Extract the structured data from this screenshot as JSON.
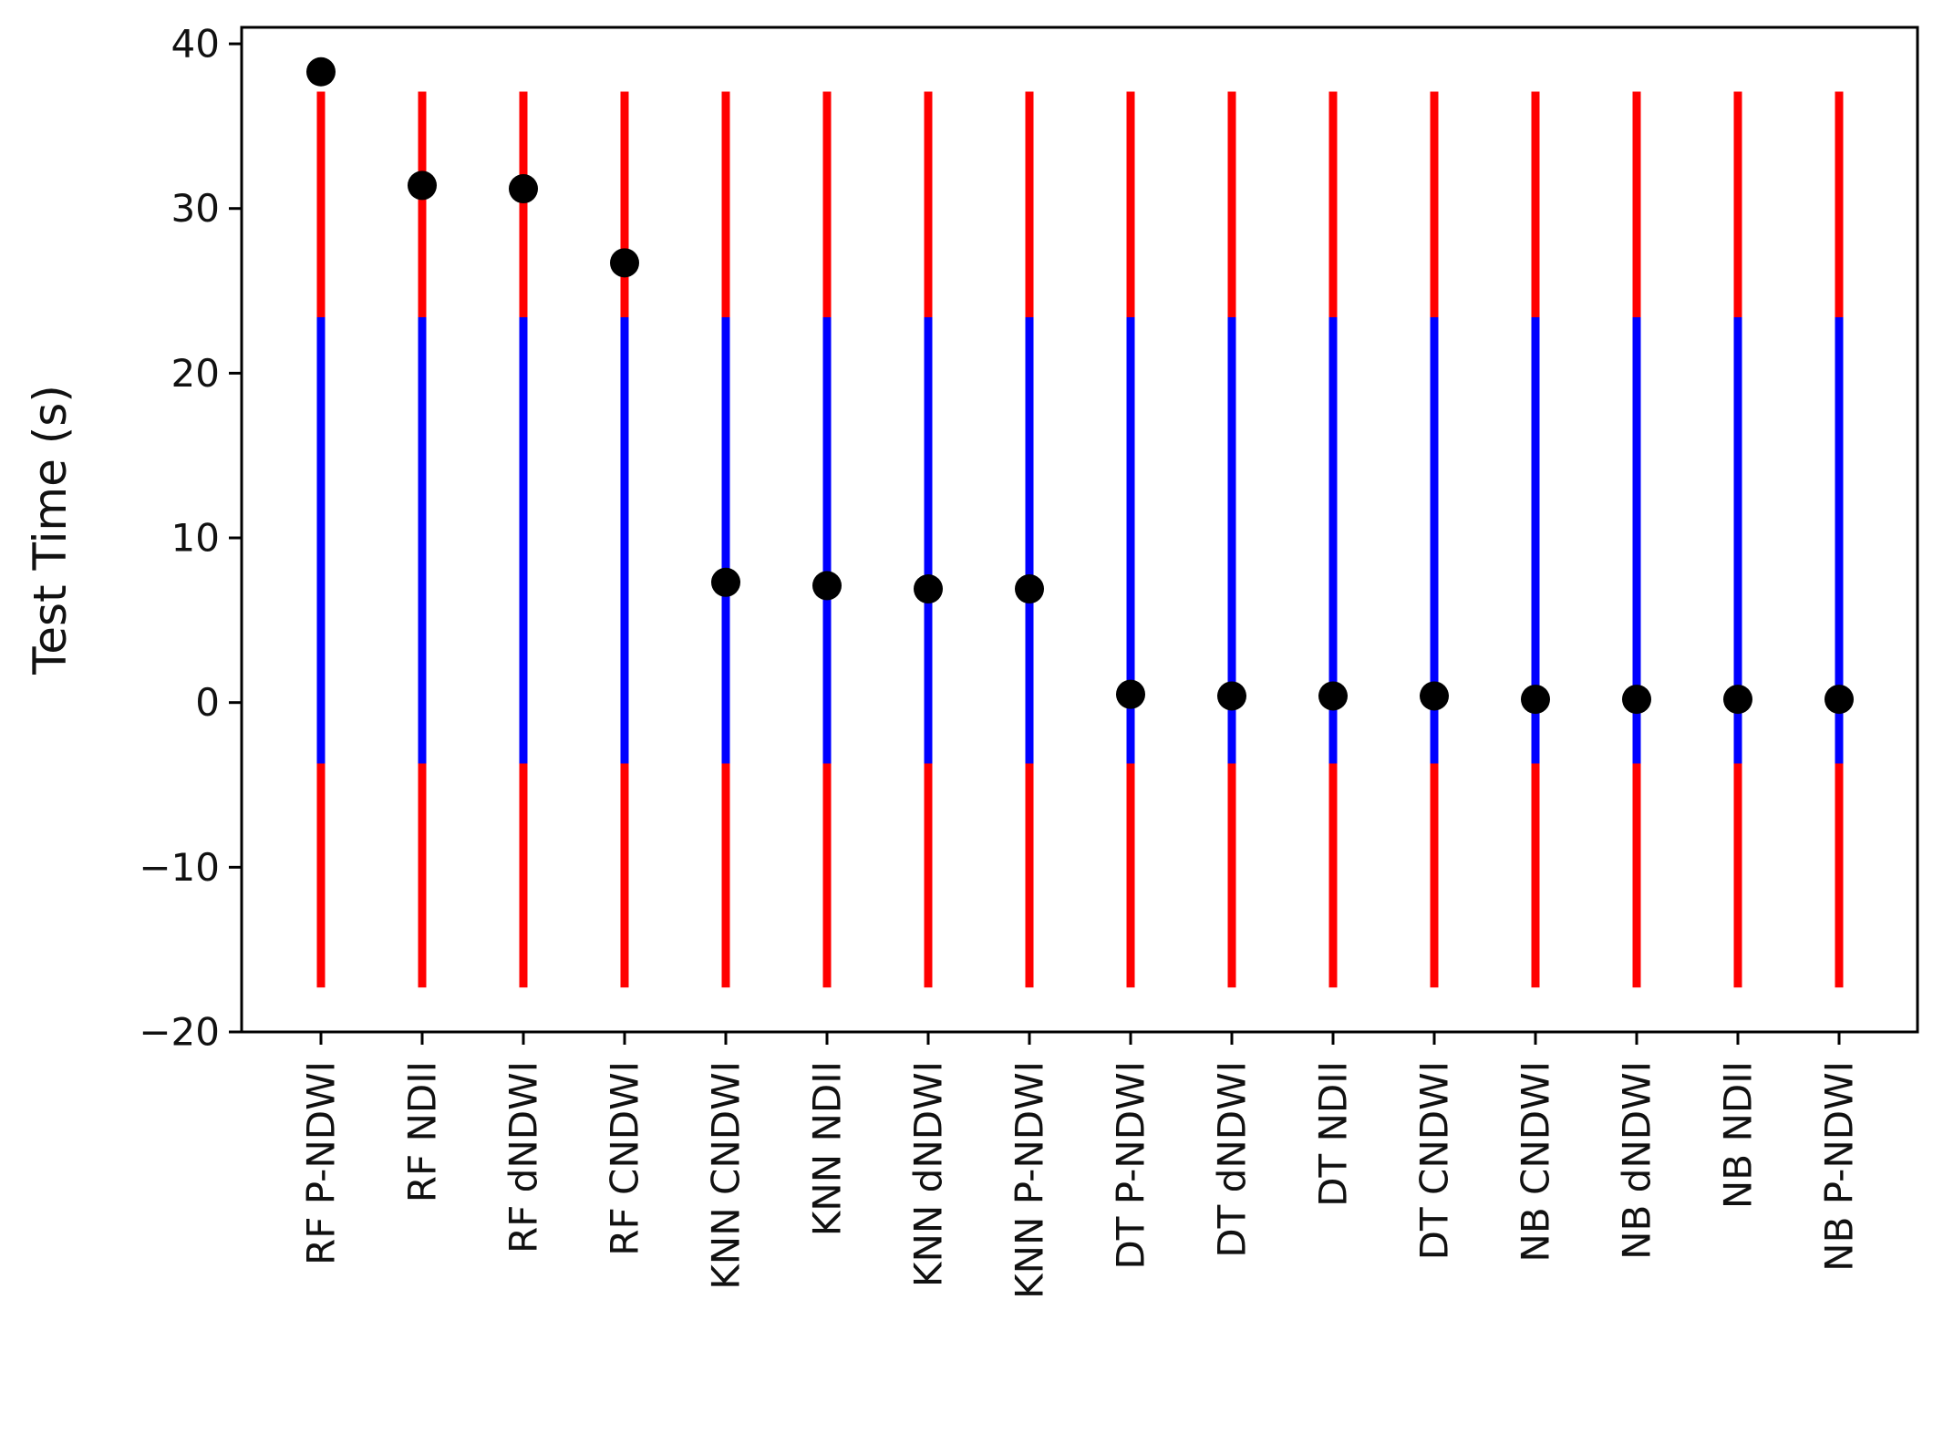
{
  "chart_data": {
    "type": "scatter",
    "title": "",
    "xlabel": "",
    "ylabel": "Test Time (s)",
    "ylim": [
      -20,
      41
    ],
    "yticks": [
      -20,
      -10,
      0,
      10,
      20,
      30,
      40
    ],
    "grid": false,
    "legend": "none",
    "categories": [
      "RF P-NDWI",
      "RF NDII",
      "RF dNDWI",
      "RF CNDWI",
      "KNN CNDWI",
      "KNN NDII",
      "KNN dNDWI",
      "KNN P-NDWI",
      "DT P-NDWI",
      "DT dNDWI",
      "DT NDII",
      "DT CNDWI",
      "NB CNDWI",
      "NB dNDWI",
      "NB NDII",
      "NB P-NDWI"
    ],
    "values": [
      38.3,
      31.4,
      31.2,
      26.7,
      7.3,
      7.1,
      6.9,
      6.9,
      0.5,
      0.4,
      0.4,
      0.4,
      0.2,
      0.2,
      0.2,
      0.2
    ],
    "bands": {
      "outer": {
        "low": -17.3,
        "high": 37.1,
        "color": "#ff0000"
      },
      "inner": {
        "low": -3.7,
        "high": 23.4,
        "color": "#0000ff"
      }
    },
    "marker_color": "#000000"
  }
}
